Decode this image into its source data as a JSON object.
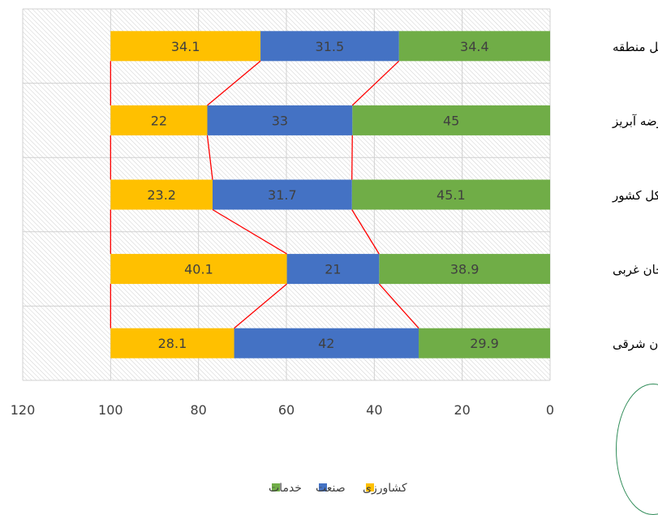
{
  "chart_data": {
    "type": "bar",
    "orientation": "horizontal-stacked-100",
    "x_axis_reversed": true,
    "xlim": [
      0,
      120
    ],
    "x_ticks": [
      "0",
      "20",
      "40",
      "60",
      "80",
      "100",
      "120"
    ],
    "categories": [
      "کل منطقه",
      "حوضه آبریز",
      "کل کشور",
      "آذربایجان غربی",
      "آذربایجان شرقی"
    ],
    "series": [
      {
        "name": "خدمات",
        "color": "#70AD47",
        "values": [
          34.4,
          45,
          45.1,
          38.9,
          29.9
        ],
        "labels": [
          "34.4",
          "45",
          "45.1",
          "38.9",
          "29.9"
        ]
      },
      {
        "name": "صنعت",
        "color": "#4472C4",
        "values": [
          31.5,
          33,
          31.7,
          21,
          42
        ],
        "labels": [
          "31.5",
          "33",
          "31.7",
          "21",
          "42"
        ]
      },
      {
        "name": "کشاورزی",
        "color": "#FFC000",
        "values": [
          34.1,
          22,
          23.2,
          40.1,
          28.1
        ],
        "labels": [
          "34.1",
          "22",
          "23.2",
          "40.1",
          "28.1"
        ]
      }
    ],
    "connector_color": "#FF0000",
    "legend_position": "bottom",
    "grid": true
  }
}
